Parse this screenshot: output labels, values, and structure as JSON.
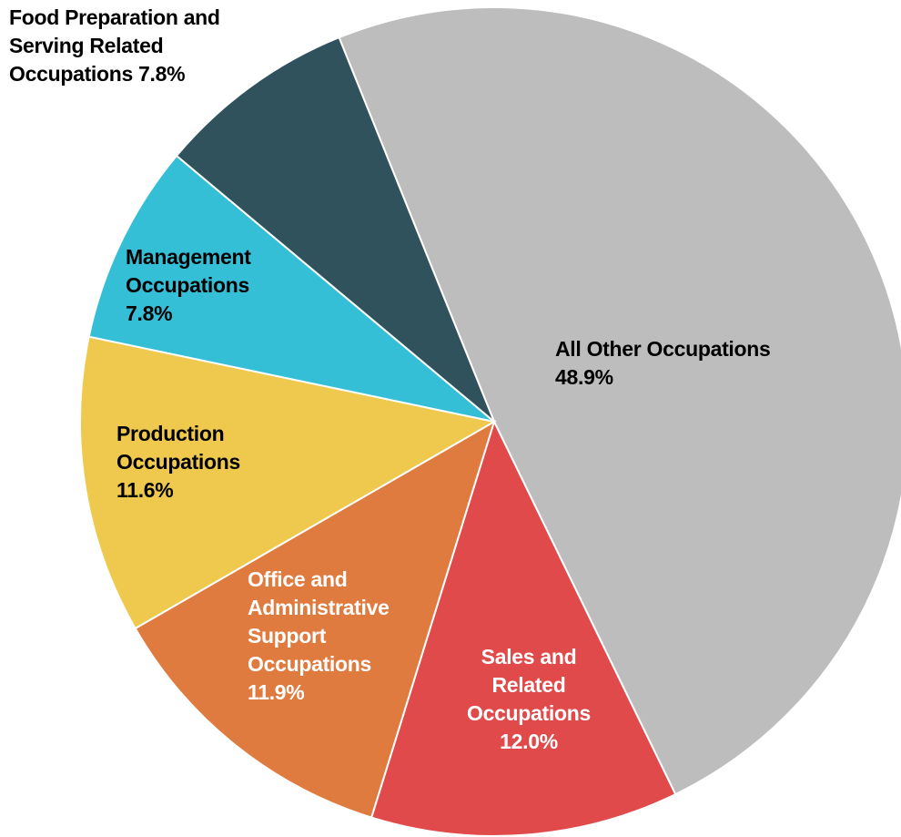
{
  "chart_data": {
    "type": "pie",
    "categories": [
      "All Other Occupations",
      "Sales and Related Occupations",
      "Office and Administrative Support Occupations",
      "Production Occupations",
      "Management Occupations",
      "Food Preparation and Serving Related Occupations"
    ],
    "values": [
      48.9,
      12.0,
      11.9,
      11.6,
      7.8,
      7.8
    ],
    "value_labels": [
      "48.9%",
      "12.0%",
      "11.9%",
      "11.6%",
      "7.8%",
      "7.8%"
    ],
    "colors": [
      "#bdbdbd",
      "#e04a4a",
      "#e07b3f",
      "#eec94d",
      "#35bfd6",
      "#2f525c"
    ]
  }
}
